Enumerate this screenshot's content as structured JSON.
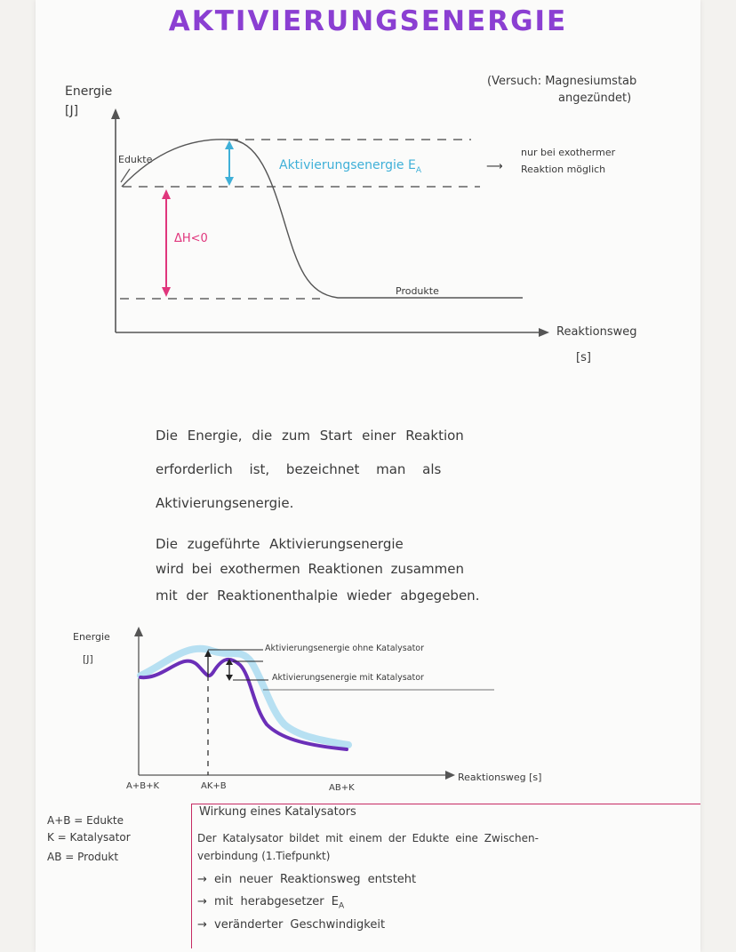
{
  "title": "AKTIVIERUNGSENERGIE",
  "experiment_note": {
    "line1": "(Versuch: Magnesiumstab",
    "line2": "angezündet)"
  },
  "diagram1": {
    "y_label": "Energie",
    "y_unit": "[J]",
    "x_label": "Reaktionsweg",
    "x_unit": "[s]",
    "edukte_label": "Edukte",
    "produkte_label": "Produkte",
    "activation_label": "Aktivierungsenergie E",
    "activation_subscript": "A",
    "delta_h_label": "ΔH<0",
    "side_note_arrow": "⟶",
    "side_note_line1": "nur bei exothermer",
    "side_note_line2": "Reaktion möglich",
    "colors": {
      "activation": "#3fb0d8",
      "delta_h": "#e0367c",
      "curve": "#555555"
    }
  },
  "text": {
    "p1_line1": "Die Energie, die zum Start einer Reaktion",
    "p1_line2": "erforderlich ist, bezeichnet man als",
    "p1_line3": "Aktivierungsenergie.",
    "p2_line1": "Die zugeführte Aktivierungsenergie",
    "p2_line2": "wird bei exothermen Reaktionen zusammen",
    "p2_line3": "mit der Reaktionenthalpie wieder abgegeben."
  },
  "diagram2": {
    "y_label": "Energie",
    "y_unit": "[J]",
    "x_label": "Reaktionsweg [s]",
    "label_without_catalyst": "Aktivierungsenergie ohne Katalysator",
    "label_with_catalyst": "Aktivierungsenergie mit Katalysator",
    "x_stage1": "A+B+K",
    "x_stage2": "AK+B",
    "x_stage3": "AB+K",
    "colors": {
      "with_catalyst": "#6b2fb8",
      "without_catalyst": "#b7e0f2"
    }
  },
  "legend": {
    "row1": "A+B = Edukte",
    "row2": "K = Katalysator",
    "row3": "AB = Produkt"
  },
  "catalyst_box": {
    "heading": "Wirkung eines Katalysators",
    "line1": "Der Katalysator bildet mit einem der Edukte eine Zwischen-",
    "line2": "verbindung (1.Tiefpunkt)",
    "bullet1": "→ ein neuer Reaktionsweg entsteht",
    "bullet2": "→ mit herabgesetzer E",
    "bullet2_sub": "A",
    "bullet3": "→ veränderter Geschwindigkeit",
    "border_color": "#c62a63"
  }
}
